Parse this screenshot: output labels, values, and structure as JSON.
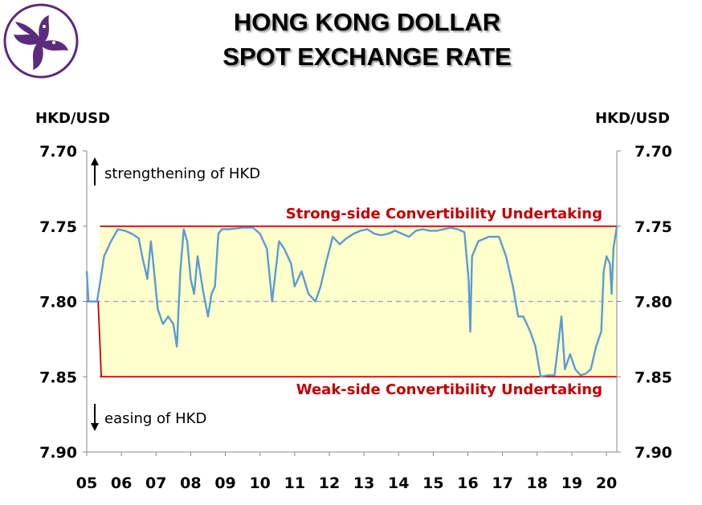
{
  "title": {
    "line1": "HONG KONG DOLLAR",
    "line2": "SPOT EXCHANGE RATE"
  },
  "logo": {
    "icon": "bauhinia-flower-icon",
    "color": "#5b2c7c"
  },
  "chart_data": {
    "type": "line",
    "title": "HONG KONG DOLLAR SPOT EXCHANGE RATE",
    "ylabel_left": "HKD/USD",
    "ylabel_right": "HKD/USD",
    "ylim": [
      7.7,
      7.9
    ],
    "y_inverted": true,
    "yticks": [
      "7.70",
      "7.75",
      "7.80",
      "7.85",
      "7.90"
    ],
    "xlim": [
      2005.0,
      2020.3
    ],
    "xticks": [
      "05",
      "06",
      "07",
      "08",
      "09",
      "10",
      "11",
      "12",
      "13",
      "14",
      "15",
      "16",
      "17",
      "18",
      "19",
      "20"
    ],
    "grid": false,
    "annotations": {
      "strengthening": "strengthening of HKD",
      "easing": "easing of HKD",
      "strong_side": "Strong-side Convertibility Undertaking",
      "weak_side": "Weak-side Convertibility Undertaking"
    },
    "colors": {
      "series": "#5b9bd5",
      "band": "#ffffcc",
      "bound": "#c00000",
      "midline": "#a6a6c6"
    },
    "strong_side": {
      "value": 7.75,
      "from": 2005.38,
      "to": 2020.3
    },
    "weak_side": {
      "value": 7.85,
      "from": 2005.38,
      "to": 2020.3
    },
    "pre_band_bound": [
      [
        2005.0,
        7.8
      ],
      [
        2005.33,
        7.8
      ],
      [
        2005.42,
        7.85
      ]
    ],
    "midline": 7.8,
    "series": [
      {
        "values": [
          [
            2005.0,
            7.78
          ],
          [
            2005.05,
            7.8
          ],
          [
            2005.3,
            7.8
          ],
          [
            2005.4,
            7.785
          ],
          [
            2005.5,
            7.77
          ],
          [
            2005.7,
            7.76
          ],
          [
            2005.9,
            7.752
          ],
          [
            2006.1,
            7.753
          ],
          [
            2006.3,
            7.755
          ],
          [
            2006.5,
            7.758
          ],
          [
            2006.6,
            7.77
          ],
          [
            2006.75,
            7.785
          ],
          [
            2006.85,
            7.76
          ],
          [
            2006.9,
            7.77
          ],
          [
            2007.05,
            7.805
          ],
          [
            2007.2,
            7.815
          ],
          [
            2007.35,
            7.81
          ],
          [
            2007.5,
            7.815
          ],
          [
            2007.6,
            7.83
          ],
          [
            2007.7,
            7.78
          ],
          [
            2007.8,
            7.752
          ],
          [
            2007.9,
            7.76
          ],
          [
            2008.0,
            7.785
          ],
          [
            2008.1,
            7.795
          ],
          [
            2008.2,
            7.77
          ],
          [
            2008.35,
            7.792
          ],
          [
            2008.5,
            7.81
          ],
          [
            2008.6,
            7.795
          ],
          [
            2008.7,
            7.79
          ],
          [
            2008.8,
            7.755
          ],
          [
            2008.9,
            7.752
          ],
          [
            2009.1,
            7.752
          ],
          [
            2009.5,
            7.751
          ],
          [
            2009.8,
            7.751
          ],
          [
            2010.0,
            7.755
          ],
          [
            2010.2,
            7.765
          ],
          [
            2010.35,
            7.8
          ],
          [
            2010.45,
            7.78
          ],
          [
            2010.55,
            7.76
          ],
          [
            2010.7,
            7.765
          ],
          [
            2010.9,
            7.775
          ],
          [
            2011.0,
            7.79
          ],
          [
            2011.2,
            7.78
          ],
          [
            2011.4,
            7.795
          ],
          [
            2011.6,
            7.8
          ],
          [
            2011.75,
            7.79
          ],
          [
            2011.9,
            7.775
          ],
          [
            2012.1,
            7.757
          ],
          [
            2012.3,
            7.762
          ],
          [
            2012.5,
            7.758
          ],
          [
            2012.7,
            7.755
          ],
          [
            2012.9,
            7.753
          ],
          [
            2013.1,
            7.752
          ],
          [
            2013.3,
            7.755
          ],
          [
            2013.5,
            7.756
          ],
          [
            2013.7,
            7.755
          ],
          [
            2013.9,
            7.753
          ],
          [
            2014.1,
            7.755
          ],
          [
            2014.3,
            7.757
          ],
          [
            2014.5,
            7.753
          ],
          [
            2014.7,
            7.752
          ],
          [
            2014.9,
            7.753
          ],
          [
            2015.1,
            7.753
          ],
          [
            2015.3,
            7.752
          ],
          [
            2015.5,
            7.751
          ],
          [
            2015.7,
            7.752
          ],
          [
            2015.9,
            7.754
          ],
          [
            2016.02,
            7.785
          ],
          [
            2016.07,
            7.82
          ],
          [
            2016.12,
            7.77
          ],
          [
            2016.3,
            7.76
          ],
          [
            2016.6,
            7.757
          ],
          [
            2016.9,
            7.757
          ],
          [
            2017.1,
            7.77
          ],
          [
            2017.3,
            7.79
          ],
          [
            2017.45,
            7.81
          ],
          [
            2017.6,
            7.81
          ],
          [
            2017.8,
            7.82
          ],
          [
            2017.95,
            7.83
          ],
          [
            2018.1,
            7.85
          ],
          [
            2018.3,
            7.849
          ],
          [
            2018.5,
            7.849
          ],
          [
            2018.6,
            7.83
          ],
          [
            2018.7,
            7.81
          ],
          [
            2018.8,
            7.845
          ],
          [
            2018.95,
            7.835
          ],
          [
            2019.1,
            7.845
          ],
          [
            2019.25,
            7.849
          ],
          [
            2019.4,
            7.848
          ],
          [
            2019.55,
            7.845
          ],
          [
            2019.7,
            7.83
          ],
          [
            2019.85,
            7.82
          ],
          [
            2019.92,
            7.78
          ],
          [
            2020.0,
            7.77
          ],
          [
            2020.1,
            7.775
          ],
          [
            2020.15,
            7.795
          ],
          [
            2020.2,
            7.765
          ],
          [
            2020.3,
            7.75
          ]
        ]
      }
    ]
  }
}
